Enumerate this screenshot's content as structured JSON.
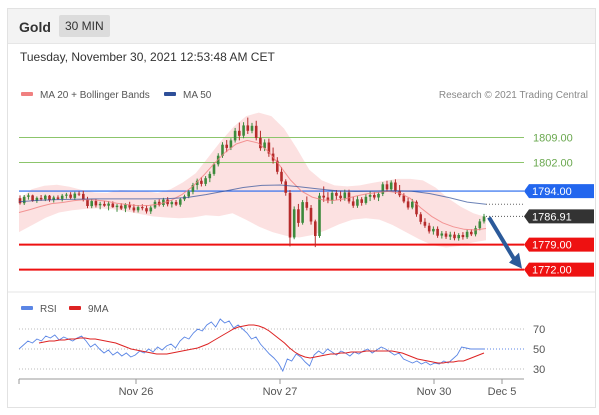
{
  "header": {
    "instrument": "Gold",
    "timeframe": "30 MIN"
  },
  "datetime": "Tuesday, November 30, 2021 12:53:48 AM CET",
  "legend": {
    "ma20_label": "MA 20 + Bollinger Bands",
    "ma50_label": "MA 50",
    "credit": "Research © 2021 Trading Central",
    "rsi_label": "RSI",
    "rsi9_label": "9MA"
  },
  "colors": {
    "ma20": "#f08080",
    "ma50": "#2e4f99",
    "band_fill": "#fcdcdc",
    "up_candle": "#3c8a3c",
    "down_candle": "#b52b2b",
    "green_level": "#8cc56b",
    "blue_level": "#2266ee",
    "red_level": "#ee1111",
    "current_price_tag": "#333333",
    "forecast_arrow": "#2b5a9a",
    "rsi_line": "#5b86e5",
    "rsi_ma_line": "#dd2222"
  },
  "chart_data": [
    {
      "type": "candlestick",
      "ylim": [
        1766,
        1817
      ],
      "x_labels": [
        "Nov 26",
        "Nov 27",
        "Nov 30",
        "Dec 5"
      ],
      "candles": [
        [
          1792.0,
          1792.8,
          1790.2,
          1790.6
        ],
        [
          1790.6,
          1792.9,
          1790.1,
          1792.4
        ],
        [
          1792.4,
          1793.4,
          1791.6,
          1792.8
        ],
        [
          1792.8,
          1793.0,
          1791.0,
          1791.3
        ],
        [
          1791.3,
          1792.5,
          1790.7,
          1792.1
        ],
        [
          1792.1,
          1792.9,
          1791.3,
          1791.7
        ],
        [
          1791.7,
          1793.0,
          1791.2,
          1792.7
        ],
        [
          1792.7,
          1792.9,
          1791.0,
          1791.5
        ],
        [
          1791.5,
          1792.7,
          1790.8,
          1792.2
        ],
        [
          1792.2,
          1792.8,
          1791.5,
          1791.8
        ],
        [
          1791.8,
          1793.2,
          1791.1,
          1792.7
        ],
        [
          1792.7,
          1793.5,
          1791.9,
          1793.0
        ],
        [
          1793.0,
          1793.7,
          1791.7,
          1792.1
        ],
        [
          1792.1,
          1793.8,
          1791.5,
          1793.3
        ],
        [
          1793.3,
          1793.9,
          1792.6,
          1793.2
        ],
        [
          1793.2,
          1794.1,
          1791.1,
          1791.6
        ],
        [
          1791.6,
          1792.4,
          1789.2,
          1789.8
        ],
        [
          1789.8,
          1791.8,
          1789.2,
          1791.2
        ],
        [
          1791.2,
          1791.8,
          1789.4,
          1790.0
        ],
        [
          1790.0,
          1791.0,
          1788.9,
          1790.4
        ],
        [
          1790.4,
          1791.3,
          1789.6,
          1789.9
        ],
        [
          1789.9,
          1791.2,
          1788.6,
          1790.5
        ],
        [
          1790.5,
          1791.1,
          1789.3,
          1789.5
        ],
        [
          1789.5,
          1790.4,
          1788.2,
          1789.9
        ],
        [
          1789.9,
          1790.6,
          1788.7,
          1789.1
        ],
        [
          1789.1,
          1790.6,
          1788.1,
          1790.2
        ],
        [
          1790.2,
          1791.0,
          1788.8,
          1789.4
        ],
        [
          1789.4,
          1790.3,
          1788.0,
          1788.6
        ],
        [
          1788.6,
          1790.1,
          1788.0,
          1789.5
        ],
        [
          1789.5,
          1790.3,
          1788.6,
          1789.2
        ],
        [
          1789.2,
          1790.0,
          1787.7,
          1788.3
        ],
        [
          1788.3,
          1789.9,
          1787.6,
          1789.4
        ],
        [
          1789.4,
          1791.5,
          1789.0,
          1791.0
        ],
        [
          1791.0,
          1791.7,
          1789.7,
          1790.1
        ],
        [
          1790.1,
          1792.1,
          1789.6,
          1791.6
        ],
        [
          1791.6,
          1792.3,
          1789.7,
          1790.3
        ],
        [
          1790.3,
          1791.4,
          1789.4,
          1790.9
        ],
        [
          1790.9,
          1791.5,
          1789.8,
          1790.2
        ],
        [
          1790.2,
          1792.1,
          1789.6,
          1791.7
        ],
        [
          1791.7,
          1793.0,
          1791.2,
          1792.5
        ],
        [
          1792.5,
          1794.3,
          1792.0,
          1793.8
        ],
        [
          1793.8,
          1796.3,
          1793.1,
          1795.7
        ],
        [
          1795.7,
          1797.5,
          1794.4,
          1796.9
        ],
        [
          1796.9,
          1797.9,
          1795.3,
          1796.0
        ],
        [
          1796.0,
          1798.2,
          1795.4,
          1797.6
        ],
        [
          1797.6,
          1799.5,
          1796.5,
          1798.8
        ],
        [
          1798.8,
          1802.0,
          1798.3,
          1801.5
        ],
        [
          1801.5,
          1804.6,
          1800.9,
          1803.9
        ],
        [
          1803.9,
          1807.7,
          1803.3,
          1807.0
        ],
        [
          1807.0,
          1808.3,
          1804.9,
          1806.1
        ],
        [
          1806.1,
          1808.8,
          1805.5,
          1808.2
        ],
        [
          1808.2,
          1811.7,
          1807.6,
          1810.9
        ],
        [
          1810.9,
          1813.2,
          1808.2,
          1809.5
        ],
        [
          1809.5,
          1813.3,
          1808.8,
          1812.4
        ],
        [
          1812.4,
          1814.6,
          1810.0,
          1810.9
        ],
        [
          1810.9,
          1813.1,
          1810.2,
          1812.3
        ],
        [
          1812.3,
          1813.7,
          1808.2,
          1808.9
        ],
        [
          1808.9,
          1810.9,
          1805.3,
          1806.0
        ],
        [
          1806.0,
          1808.5,
          1805.2,
          1807.6
        ],
        [
          1807.6,
          1808.7,
          1803.6,
          1804.5
        ],
        [
          1804.5,
          1806.2,
          1801.7,
          1802.5
        ],
        [
          1802.5,
          1803.5,
          1798.7,
          1799.4
        ],
        [
          1799.4,
          1800.7,
          1796.0,
          1796.7
        ],
        [
          1796.7,
          1797.3,
          1792.7,
          1793.5
        ],
        [
          1793.5,
          1794.3,
          1778.5,
          1781.0
        ],
        [
          1781.0,
          1789.7,
          1780.5,
          1788.9
        ],
        [
          1788.9,
          1790.4,
          1784.0,
          1785.1
        ],
        [
          1785.1,
          1791.5,
          1784.6,
          1790.9
        ],
        [
          1790.9,
          1792.5,
          1788.6,
          1789.3
        ],
        [
          1789.3,
          1790.1,
          1784.6,
          1785.5
        ],
        [
          1785.5,
          1786.0,
          1778.3,
          1781.4
        ],
        [
          1781.4,
          1793.5,
          1780.9,
          1792.7
        ],
        [
          1792.7,
          1795.3,
          1791.0,
          1792.2
        ],
        [
          1792.2,
          1793.7,
          1790.6,
          1791.3
        ],
        [
          1791.3,
          1794.1,
          1790.4,
          1793.5
        ],
        [
          1793.5,
          1794.3,
          1791.6,
          1792.7
        ],
        [
          1792.7,
          1793.9,
          1791.1,
          1792.0
        ],
        [
          1792.0,
          1794.4,
          1791.3,
          1793.6
        ],
        [
          1793.6,
          1794.4,
          1790.5,
          1791.1
        ],
        [
          1791.1,
          1792.4,
          1789.3,
          1789.9
        ],
        [
          1789.9,
          1792.6,
          1789.3,
          1791.7
        ],
        [
          1791.7,
          1792.3,
          1789.9,
          1790.7
        ],
        [
          1790.7,
          1793.2,
          1790.2,
          1792.4
        ],
        [
          1792.4,
          1793.9,
          1791.2,
          1792.9
        ],
        [
          1792.9,
          1793.7,
          1791.6,
          1792.2
        ],
        [
          1792.2,
          1793.7,
          1791.2,
          1793.2
        ],
        [
          1793.2,
          1796.5,
          1792.6,
          1795.9
        ],
        [
          1795.9,
          1796.9,
          1793.8,
          1794.5
        ],
        [
          1794.5,
          1797.0,
          1793.9,
          1796.4
        ],
        [
          1796.4,
          1797.3,
          1793.2,
          1794.1
        ],
        [
          1794.1,
          1795.7,
          1792.3,
          1792.8
        ],
        [
          1792.8,
          1793.4,
          1790.6,
          1791.1
        ],
        [
          1791.1,
          1792.1,
          1788.8,
          1789.4
        ],
        [
          1789.4,
          1791.8,
          1788.9,
          1791.0
        ],
        [
          1791.0,
          1791.4,
          1786.8,
          1787.5
        ],
        [
          1787.5,
          1788.1,
          1784.7,
          1785.4
        ],
        [
          1785.4,
          1786.4,
          1783.7,
          1784.3
        ],
        [
          1784.3,
          1785.1,
          1782.1,
          1782.7
        ],
        [
          1782.7,
          1784.1,
          1781.8,
          1783.4
        ],
        [
          1783.4,
          1784.1,
          1780.9,
          1781.5
        ],
        [
          1781.5,
          1782.8,
          1780.7,
          1782.1
        ],
        [
          1782.1,
          1782.8,
          1780.6,
          1781.2
        ],
        [
          1781.2,
          1782.6,
          1780.3,
          1781.8
        ],
        [
          1781.8,
          1782.6,
          1780.2,
          1780.8
        ],
        [
          1780.8,
          1782.2,
          1780.1,
          1781.7
        ],
        [
          1781.7,
          1782.5,
          1780.4,
          1781.1
        ],
        [
          1781.1,
          1783.2,
          1780.6,
          1782.6
        ],
        [
          1782.6,
          1783.3,
          1781.4,
          1781.9
        ],
        [
          1781.9,
          1784.3,
          1781.3,
          1783.6
        ],
        [
          1783.6,
          1786.2,
          1783.0,
          1785.5
        ],
        [
          1785.5,
          1787.6,
          1784.9,
          1786.9
        ]
      ],
      "ma20": [
        1788.0,
        1788.8,
        1789.7,
        1790.5,
        1790.8,
        1791.3,
        1791.6,
        1791.5,
        1791.2,
        1790.6,
        1790.2,
        1789.9,
        1790.0,
        1790.4,
        1791.4,
        1793.0,
        1795.3,
        1798.4,
        1801.8,
        1804.9,
        1807.2,
        1808.2,
        1807.5,
        1805.0,
        1801.2,
        1797.1,
        1794.0,
        1792.3,
        1791.5,
        1791.4,
        1791.8,
        1792.6,
        1793.2,
        1793.6,
        1793.9,
        1793.5,
        1792.0,
        1789.3,
        1786.9,
        1785.1,
        1784.0,
        1783.3,
        1783.1,
        1783.5
      ],
      "bollinger_upper": [
        1791.5,
        1794.5,
        1795.5,
        1795.8,
        1795.2,
        1794.3,
        1793.6,
        1793.5,
        1794.3,
        1794.2,
        1794.0,
        1793.5,
        1794.5,
        1796.5,
        1799.0,
        1803.5,
        1808.0,
        1812.0,
        1815.0,
        1816.0,
        1815.0,
        1811.5,
        1806.0,
        1800.0,
        1797.0,
        1795.6,
        1795.3,
        1795.6,
        1796.3,
        1796.9,
        1797.4,
        1797.4,
        1797.0,
        1795.0,
        1792.0,
        1789.6,
        1787.8,
        1786.7
      ],
      "bollinger_lower": [
        1782.5,
        1784.5,
        1786.5,
        1788.0,
        1788.6,
        1789.0,
        1789.2,
        1788.9,
        1788.4,
        1787.6,
        1786.9,
        1786.6,
        1786.4,
        1786.6,
        1787.2,
        1787.0,
        1787.8,
        1786.0,
        1784.0,
        1782.5,
        1781.5,
        1781.0,
        1781.7,
        1783.0,
        1784.7,
        1786.0,
        1786.4,
        1786.0,
        1784.5,
        1782.5,
        1780.5,
        1778.8,
        1778.2,
        1778.6,
        1779.6,
        1780.2
      ],
      "ma50": [
        1791.0,
        1791.4,
        1791.6,
        1791.7,
        1791.8,
        1791.8,
        1791.8,
        1791.8,
        1791.9,
        1792.2,
        1793.0,
        1794.0,
        1795.0,
        1795.6,
        1795.7,
        1795.2,
        1794.6,
        1794.1,
        1793.9,
        1794.0,
        1794.1,
        1794.0,
        1793.3,
        1792.2,
        1790.9,
        1790.3
      ],
      "levels": [
        {
          "value": 1809.0,
          "label": "1809.00",
          "kind": "resistance-minor"
        },
        {
          "value": 1802.0,
          "label": "1802.00",
          "kind": "resistance-minor"
        },
        {
          "value": 1794.0,
          "label": "1794.00",
          "kind": "pivot"
        },
        {
          "value": 1779.0,
          "label": "1779.00",
          "kind": "support"
        },
        {
          "value": 1772.0,
          "label": "1772.00",
          "kind": "support"
        }
      ],
      "current_price": {
        "value": 1786.91,
        "label": "1786.91"
      },
      "forecast": {
        "from": 1786.9,
        "to": 1772.0,
        "direction": "down"
      }
    },
    {
      "type": "line",
      "ylim": [
        22,
        86
      ],
      "y_ticks": [
        70,
        50,
        30
      ],
      "grid": true,
      "series": [
        {
          "name": "RSI",
          "values": [
            50,
            54,
            58,
            56,
            60,
            58,
            63,
            61,
            64,
            59,
            62,
            60,
            58,
            61,
            63,
            58,
            52,
            55,
            50,
            46,
            49,
            44,
            47,
            43,
            46,
            42,
            44,
            48,
            46,
            50,
            47,
            52,
            49,
            53,
            55,
            51,
            58,
            62,
            60,
            66,
            70,
            68,
            74,
            77,
            72,
            80,
            76,
            78,
            71,
            74,
            70,
            66,
            60,
            62,
            55,
            50,
            45,
            41,
            36,
            28,
            40,
            38,
            45,
            42,
            37,
            33,
            44,
            48,
            45,
            50,
            47,
            44,
            48,
            46,
            43,
            47,
            45,
            48,
            50,
            46,
            49,
            52,
            50,
            47,
            44,
            46,
            40,
            38,
            36,
            38,
            35,
            37,
            34,
            36,
            35,
            38,
            36,
            40,
            44,
            52,
            51,
            50,
            50,
            50,
            50
          ]
        },
        {
          "name": "9MA",
          "values": [
            56,
            57,
            58,
            58,
            59,
            59,
            60,
            60,
            61,
            61,
            60,
            60,
            59,
            58,
            57,
            56,
            54,
            52,
            50,
            49,
            48,
            47,
            46,
            45,
            45,
            45,
            46,
            47,
            48,
            49,
            50,
            51,
            53,
            55,
            58,
            61,
            64,
            67,
            70,
            72,
            73,
            74,
            74,
            73,
            71,
            68,
            64,
            60,
            56,
            51,
            47,
            44,
            42,
            41,
            42,
            43,
            44,
            45,
            45,
            46,
            46,
            47,
            47,
            47,
            48,
            48,
            48,
            48,
            48,
            48,
            47,
            46,
            44,
            42,
            40,
            39,
            38,
            37,
            36,
            36,
            37,
            37,
            38,
            38,
            40,
            42,
            44,
            46
          ]
        }
      ]
    }
  ]
}
